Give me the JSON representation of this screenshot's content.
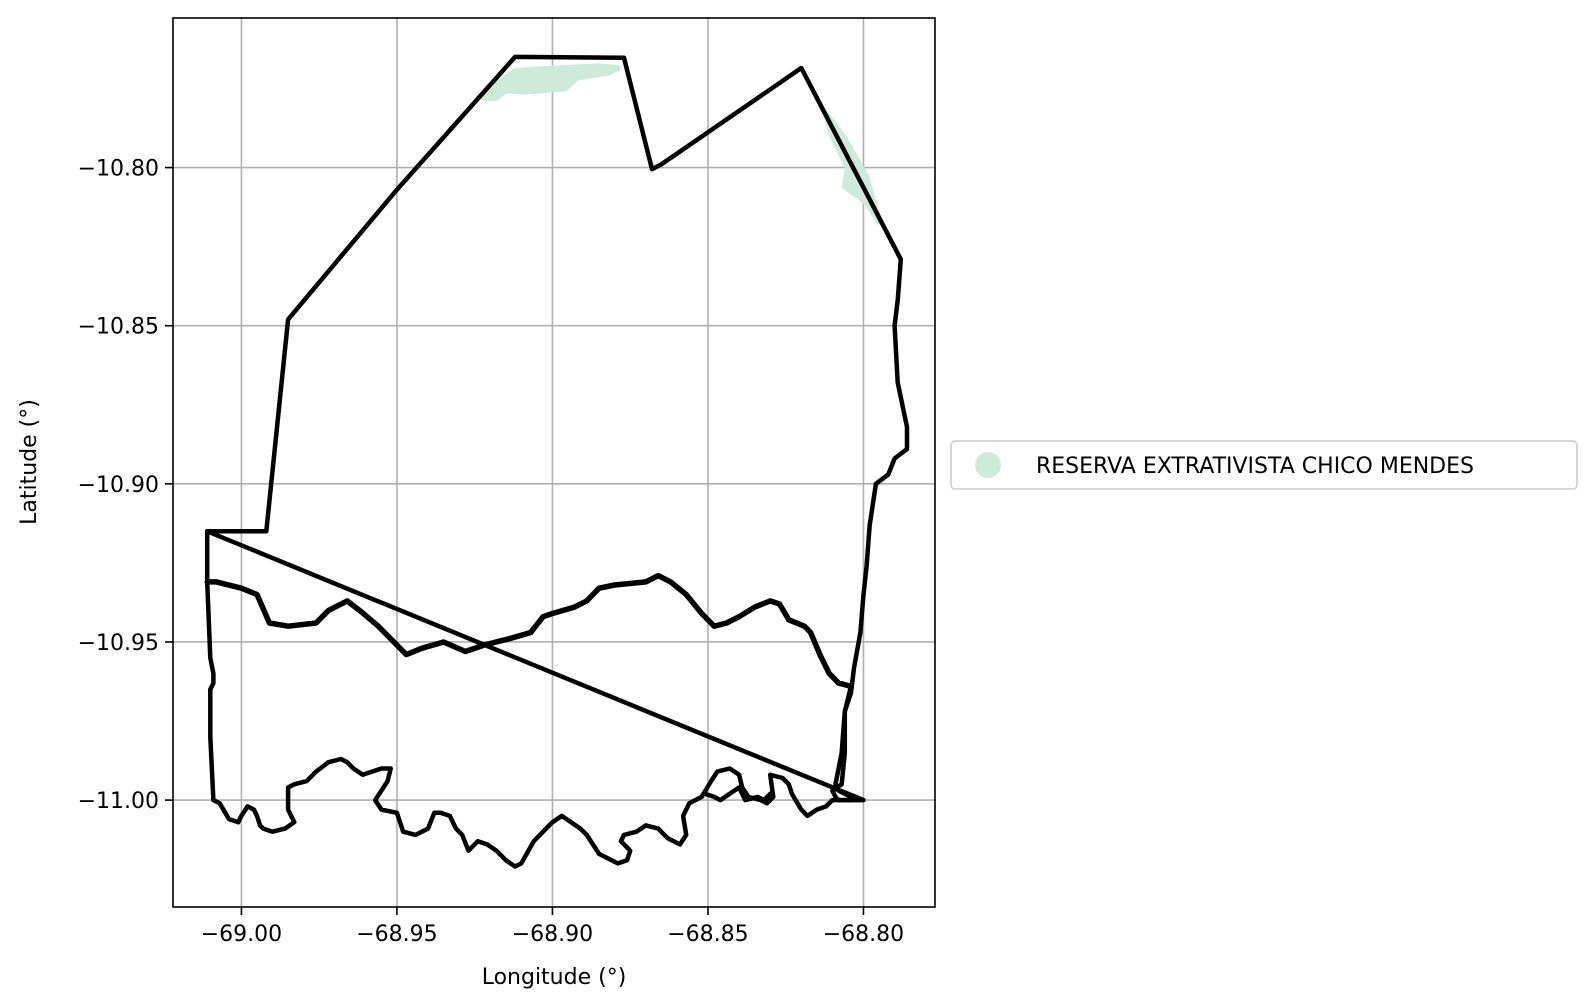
{
  "chart_data": {
    "type": "map",
    "xlabel": "Longitude (°)",
    "ylabel": "Latitude (°)",
    "xlim": [
      -69.022,
      -68.777
    ],
    "ylim": [
      -11.0338,
      -10.7527
    ],
    "grid": true,
    "x_ticks": [
      {
        "value": -69.0,
        "label": "−69.00"
      },
      {
        "value": -68.95,
        "label": "−68.95"
      },
      {
        "value": -68.9,
        "label": "−68.90"
      },
      {
        "value": -68.85,
        "label": "−68.85"
      },
      {
        "value": -68.8,
        "label": "−68.80"
      }
    ],
    "y_ticks": [
      {
        "value": -10.8,
        "label": "−10.80"
      },
      {
        "value": -10.85,
        "label": "−10.85"
      },
      {
        "value": -10.9,
        "label": "−10.90"
      },
      {
        "value": -10.95,
        "label": "−10.95"
      },
      {
        "value": -11.0,
        "label": "−11.00"
      }
    ],
    "legend": {
      "placement": "center-right outside",
      "entries": [
        {
          "label": "RESERVA EXTRATIVISTA CHICO MENDES",
          "color": "#cdeadb",
          "marker": "circle"
        }
      ]
    },
    "fill_color": "#cdeadb",
    "boundary_color": "#000000",
    "shaded_areas": [
      {
        "name": "reserve-north",
        "coords": [
          [
            -68.922,
            -10.778
          ],
          [
            -68.917,
            -10.773
          ],
          [
            -68.912,
            -10.7695
          ],
          [
            -68.905,
            -10.769
          ],
          [
            -68.895,
            -10.7685
          ],
          [
            -68.885,
            -10.768
          ],
          [
            -68.879,
            -10.7685
          ],
          [
            -68.882,
            -10.77
          ],
          [
            -68.892,
            -10.7715
          ],
          [
            -68.896,
            -10.775
          ],
          [
            -68.903,
            -10.7755
          ],
          [
            -68.909,
            -10.776
          ],
          [
            -68.915,
            -10.7755
          ],
          [
            -68.918,
            -10.778
          ]
        ]
      },
      {
        "name": "reserve-east",
        "coords": [
          [
            -68.812,
            -10.783
          ],
          [
            -68.806,
            -10.791
          ],
          [
            -68.799,
            -10.803
          ],
          [
            -68.795,
            -10.817
          ],
          [
            -68.799,
            -10.811
          ],
          [
            -68.803,
            -10.808
          ],
          [
            -68.806,
            -10.806
          ],
          [
            -68.805,
            -10.8
          ],
          [
            -68.81,
            -10.79
          ]
        ]
      }
    ],
    "boundaries": [
      {
        "name": "municipality-outline",
        "width": 4.5,
        "closed": true,
        "coords": [
          [
            -69.011,
            -10.915
          ],
          [
            -68.992,
            -10.915
          ],
          [
            -68.985,
            -10.848
          ],
          [
            -68.95,
            -10.807
          ],
          [
            -68.912,
            -10.765
          ],
          [
            -68.877,
            -10.7653
          ],
          [
            -68.868,
            -10.8005
          ],
          [
            -68.865,
            -10.799
          ],
          [
            -68.82,
            -10.7685
          ],
          [
            -68.788,
            -10.829
          ],
          [
            -68.789,
            -10.842
          ],
          [
            -68.79,
            -10.85
          ],
          [
            -68.789,
            -10.868
          ],
          [
            -68.786,
            -10.882
          ],
          [
            -68.786,
            -10.889
          ],
          [
            -68.79,
            -10.892
          ],
          [
            -68.792,
            -10.897
          ],
          [
            -68.796,
            -10.9
          ],
          [
            -68.798,
            -10.913
          ],
          [
            -68.799,
            -10.926
          ],
          [
            -68.8,
            -10.935
          ],
          [
            -68.801,
            -10.947
          ],
          [
            -68.803,
            -10.958
          ],
          [
            -68.804,
            -10.966
          ],
          [
            -68.806,
            -10.972
          ],
          [
            -68.806,
            -10.985
          ],
          [
            -68.807,
            -10.995
          ],
          [
            -68.81,
            -10.997
          ],
          [
            -68.809,
            -10.999
          ],
          [
            -68.808,
            -11.0
          ],
          [
            -68.804,
            -11.0
          ],
          [
            -68.8,
            -11.0
          ]
        ]
      },
      {
        "name": "middle-line",
        "width": 5.5,
        "closed": false,
        "coords": [
          [
            -69.011,
            -10.931
          ],
          [
            -69.008,
            -10.931
          ],
          [
            -69.0,
            -10.933
          ],
          [
            -68.995,
            -10.935
          ],
          [
            -68.991,
            -10.944
          ],
          [
            -68.985,
            -10.945
          ],
          [
            -68.976,
            -10.944
          ],
          [
            -68.972,
            -10.94
          ],
          [
            -68.966,
            -10.937
          ],
          [
            -68.962,
            -10.94
          ],
          [
            -68.956,
            -10.945
          ],
          [
            -68.95,
            -10.951
          ],
          [
            -68.947,
            -10.954
          ],
          [
            -68.942,
            -10.952
          ],
          [
            -68.935,
            -10.95
          ],
          [
            -68.928,
            -10.953
          ],
          [
            -68.922,
            -10.951
          ],
          [
            -68.914,
            -10.949
          ],
          [
            -68.907,
            -10.947
          ],
          [
            -68.903,
            -10.942
          ],
          [
            -68.9,
            -10.941
          ],
          [
            -68.893,
            -10.939
          ],
          [
            -68.889,
            -10.937
          ],
          [
            -68.885,
            -10.933
          ],
          [
            -68.88,
            -10.932
          ],
          [
            -68.87,
            -10.931
          ],
          [
            -68.866,
            -10.929
          ],
          [
            -68.862,
            -10.931
          ],
          [
            -68.857,
            -10.935
          ],
          [
            -68.852,
            -10.941
          ],
          [
            -68.848,
            -10.945
          ],
          [
            -68.844,
            -10.944
          ],
          [
            -68.84,
            -10.942
          ],
          [
            -68.835,
            -10.939
          ],
          [
            -68.83,
            -10.937
          ],
          [
            -68.827,
            -10.938
          ],
          [
            -68.824,
            -10.943
          ],
          [
            -68.819,
            -10.945
          ],
          [
            -68.817,
            -10.947
          ],
          [
            -68.814,
            -10.954
          ],
          [
            -68.811,
            -10.96
          ],
          [
            -68.808,
            -10.963
          ],
          [
            -68.804,
            -10.964
          ]
        ]
      },
      {
        "name": "river-bank-west",
        "width": 4.5,
        "closed": false,
        "coords": [
          [
            -69.011,
            -10.915
          ],
          [
            -69.011,
            -10.931
          ],
          [
            -69.01,
            -10.955
          ],
          [
            -69.009,
            -10.96
          ],
          [
            -69.009,
            -10.963
          ],
          [
            -69.01,
            -10.965
          ],
          [
            -69.01,
            -10.98
          ],
          [
            -69.009,
            -11.0
          ],
          [
            -69.007,
            -11.001
          ],
          [
            -69.004,
            -11.006
          ],
          [
            -69.001,
            -11.007
          ],
          [
            -69.0,
            -11.005
          ],
          [
            -68.998,
            -11.002
          ],
          [
            -68.996,
            -11.003
          ],
          [
            -68.995,
            -11.005
          ],
          [
            -68.994,
            -11.008
          ],
          [
            -68.993,
            -11.009
          ],
          [
            -68.99,
            -11.01
          ],
          [
            -68.986,
            -11.009
          ],
          [
            -68.983,
            -11.007
          ],
          [
            -68.985,
            -11.003
          ],
          [
            -68.985,
            -10.996
          ],
          [
            -68.983,
            -10.995
          ],
          [
            -68.979,
            -10.994
          ],
          [
            -68.976,
            -10.991
          ],
          [
            -68.972,
            -10.988
          ],
          [
            -68.968,
            -10.987
          ],
          [
            -68.966,
            -10.988
          ],
          [
            -68.964,
            -10.99
          ],
          [
            -68.961,
            -10.992
          ],
          [
            -68.958,
            -10.991
          ],
          [
            -68.955,
            -10.99
          ],
          [
            -68.952,
            -10.99
          ],
          [
            -68.953,
            -10.994
          ],
          [
            -68.957,
            -11.0
          ],
          [
            -68.955,
            -11.003
          ],
          [
            -68.95,
            -11.004
          ],
          [
            -68.948,
            -11.01
          ],
          [
            -68.944,
            -11.011
          ],
          [
            -68.94,
            -11.009
          ],
          [
            -68.938,
            -11.004
          ],
          [
            -68.936,
            -11.004
          ],
          [
            -68.933,
            -11.005
          ],
          [
            -68.931,
            -11.009
          ],
          [
            -68.929,
            -11.011
          ],
          [
            -68.927,
            -11.016
          ],
          [
            -68.924,
            -11.013
          ],
          [
            -68.921,
            -11.014
          ],
          [
            -68.918,
            -11.016
          ],
          [
            -68.915,
            -11.019
          ],
          [
            -68.912,
            -11.021
          ],
          [
            -68.91,
            -11.02
          ],
          [
            -68.906,
            -11.013
          ],
          [
            -68.903,
            -11.01
          ],
          [
            -68.9,
            -11.007
          ],
          [
            -68.897,
            -11.005
          ],
          [
            -68.894,
            -11.007
          ],
          [
            -68.891,
            -11.009
          ],
          [
            -68.889,
            -11.011
          ],
          [
            -68.887,
            -11.014
          ],
          [
            -68.885,
            -11.017
          ],
          [
            -68.879,
            -11.02
          ],
          [
            -68.876,
            -11.019
          ],
          [
            -68.875,
            -11.016
          ],
          [
            -68.878,
            -11.013
          ],
          [
            -68.877,
            -11.011
          ],
          [
            -68.873,
            -11.01
          ],
          [
            -68.87,
            -11.008
          ],
          [
            -68.866,
            -11.009
          ],
          [
            -68.863,
            -11.012
          ],
          [
            -68.859,
            -11.014
          ],
          [
            -68.857,
            -11.011
          ],
          [
            -68.858,
            -11.005
          ],
          [
            -68.856,
            -11.001
          ],
          [
            -68.852,
            -10.999
          ],
          [
            -68.849,
            -10.994
          ],
          [
            -68.847,
            -10.991
          ],
          [
            -68.843,
            -10.99
          ],
          [
            -68.84,
            -10.992
          ],
          [
            -68.839,
            -10.996
          ],
          [
            -68.837,
            -10.999
          ],
          [
            -68.833,
            -11.0
          ],
          [
            -68.831,
            -11.001
          ],
          [
            -68.829,
            -10.999
          ],
          [
            -68.83,
            -10.992
          ],
          [
            -68.826,
            -10.993
          ],
          [
            -68.824,
            -10.995
          ],
          [
            -68.823,
            -10.998
          ],
          [
            -68.82,
            -11.003
          ],
          [
            -68.818,
            -11.005
          ],
          [
            -68.815,
            -11.003
          ],
          [
            -68.812,
            -11.002
          ],
          [
            -68.81,
            -11.0
          ],
          [
            -68.808,
            -11.0
          ],
          [
            -68.804,
            -11.0
          ]
        ]
      },
      {
        "name": "river-bank-east-inner",
        "width": 4.5,
        "closed": false,
        "coords": [
          [
            -68.851,
            -10.998
          ],
          [
            -68.848,
            -10.999
          ],
          [
            -68.846,
            -11.0
          ],
          [
            -68.843,
            -10.998
          ],
          [
            -68.84,
            -10.996
          ],
          [
            -68.838,
            -11.0
          ],
          [
            -68.834,
            -10.999
          ],
          [
            -68.832,
            -11.0
          ],
          [
            -68.83,
            -10.998
          ]
        ]
      },
      {
        "name": "middle-to-bottom-east",
        "width": 4.5,
        "closed": false,
        "coords": [
          [
            -68.804,
            -10.964
          ],
          [
            -68.806,
            -10.972
          ],
          [
            -68.807,
            -10.985
          ],
          [
            -68.809,
            -10.995
          ],
          [
            -68.808,
            -10.997
          ],
          [
            -68.806,
            -10.998
          ],
          [
            -68.802,
            -11.0
          ]
        ]
      }
    ]
  }
}
